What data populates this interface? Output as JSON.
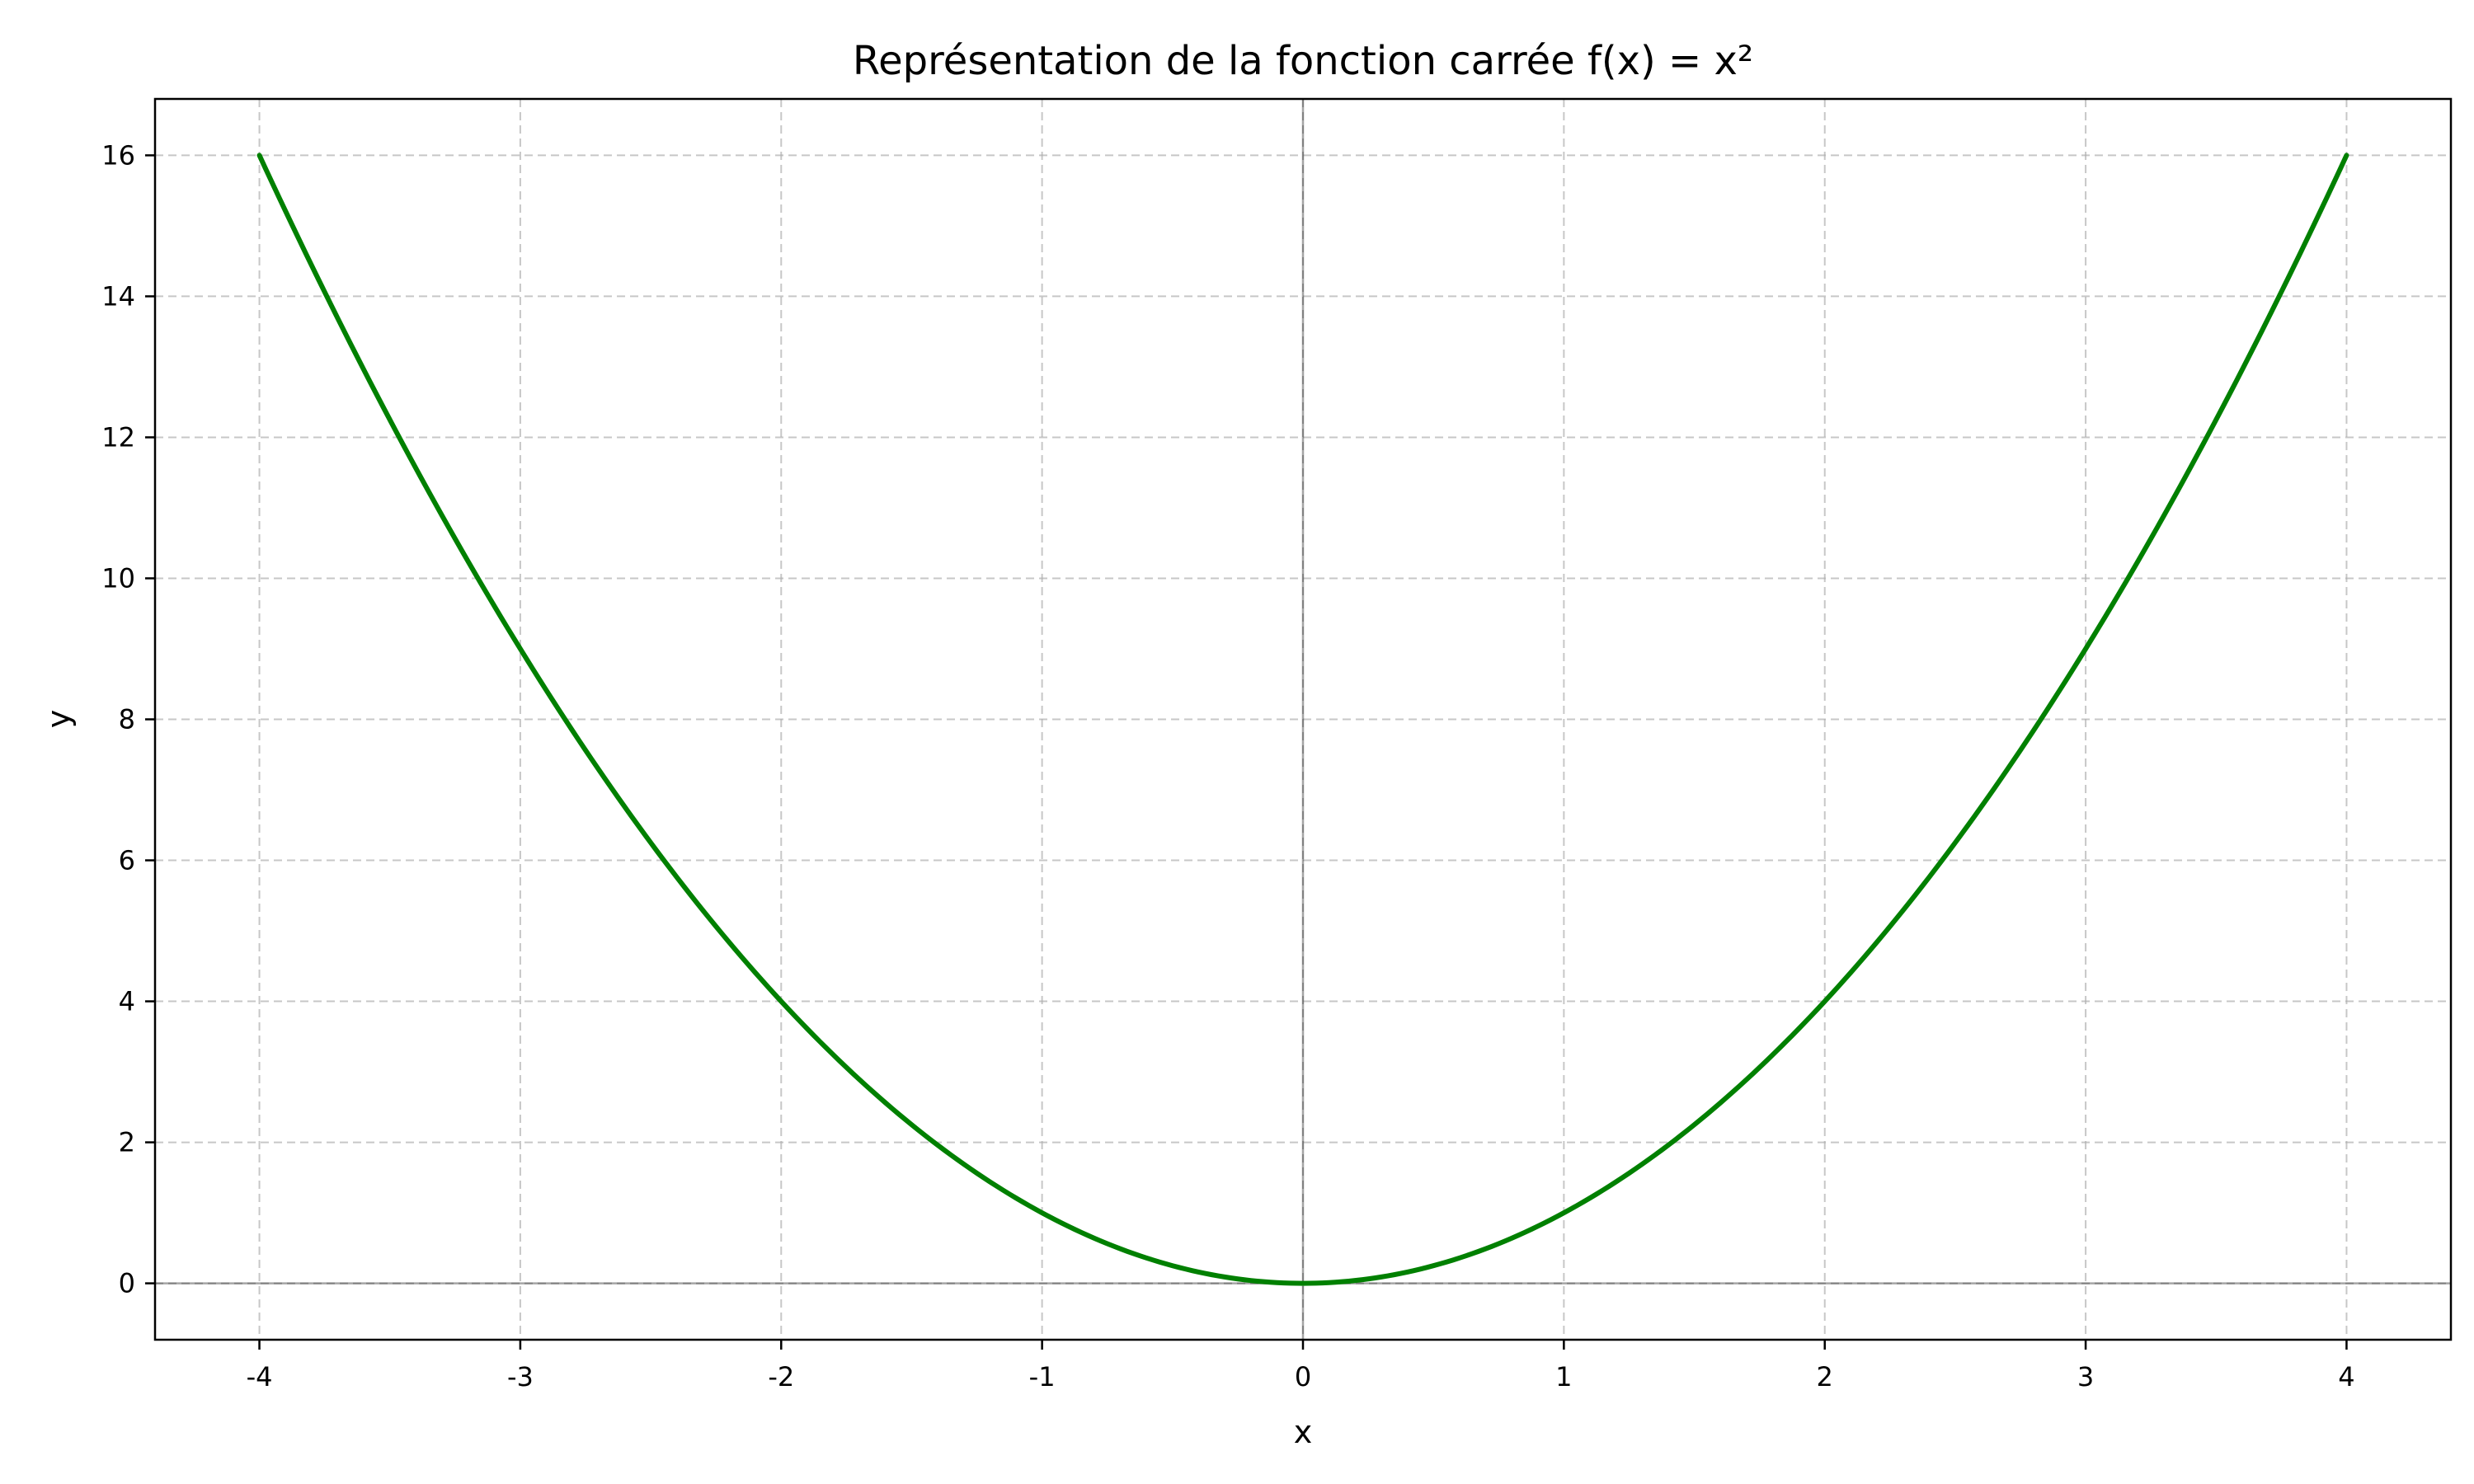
{
  "chart_data": {
    "type": "line",
    "title": "Représentation de la fonction carrée f(x) = x²",
    "xlabel": "x",
    "ylabel": "y",
    "xlim": [
      -4.4,
      4.4
    ],
    "ylim": [
      -0.8,
      16.8
    ],
    "x_ticks": [
      -4,
      -3,
      -2,
      -1,
      0,
      1,
      2,
      3,
      4
    ],
    "y_ticks": [
      0,
      2,
      4,
      6,
      8,
      10,
      12,
      14,
      16
    ],
    "x_tick_labels": [
      "-4",
      "-3",
      "-2",
      "-1",
      "0",
      "1",
      "2",
      "3",
      "4"
    ],
    "y_tick_labels": [
      "0",
      "2",
      "4",
      "6",
      "8",
      "10",
      "12",
      "14",
      "16"
    ],
    "grid": true,
    "zero_lines": true,
    "series": [
      {
        "color": "#008000",
        "x": [
          -4,
          -3.5,
          -3,
          -2.5,
          -2,
          -1.5,
          -1,
          -0.5,
          0,
          0.5,
          1,
          1.5,
          2,
          2.5,
          3,
          3.5,
          4
        ],
        "y": [
          16,
          12.25,
          9,
          6.25,
          4,
          2.25,
          1,
          0.25,
          0,
          0.25,
          1,
          2.25,
          4,
          6.25,
          9,
          12.25,
          16
        ]
      }
    ]
  }
}
